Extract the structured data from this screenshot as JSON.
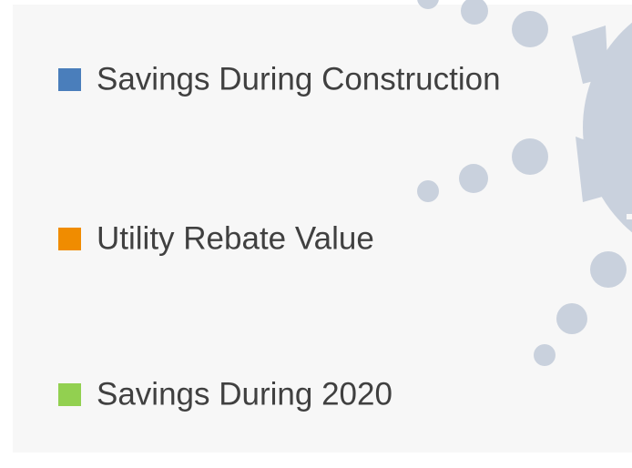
{
  "legend": {
    "items": [
      {
        "name": "Savings During Construction",
        "color": "#4a7ebb"
      },
      {
        "name": "Utility Rebate Value",
        "color": "#f08c00"
      },
      {
        "name": "Savings During 2020",
        "color": "#92d050"
      }
    ]
  }
}
